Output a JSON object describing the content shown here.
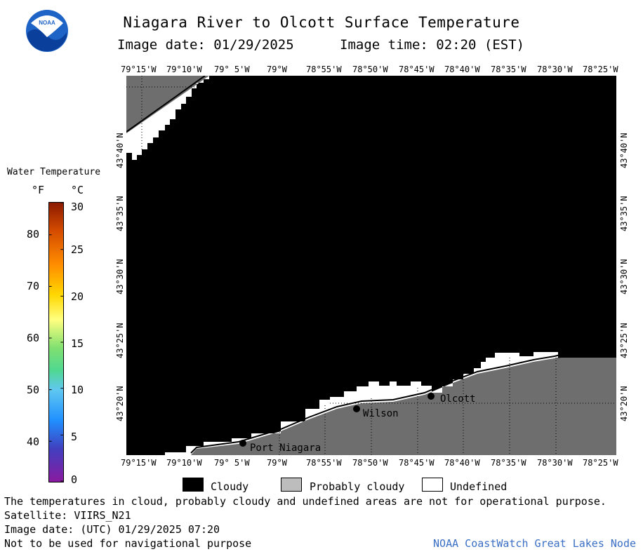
{
  "title": "Niagara River to Olcott Surface Temperature",
  "image_date": "Image date: 01/29/2025",
  "image_time": "Image time: 02:20 (EST)",
  "logo_text": "NOAA",
  "lon_labels": [
    "79°15'W",
    "79°10'W",
    "79° 5'W",
    "79°W",
    "78°55'W",
    "78°50'W",
    "78°45'W",
    "78°40'W",
    "78°35'W",
    "78°30'W",
    "78°25'W"
  ],
  "lat_labels": [
    "43°40'N",
    "43°35'N",
    "43°30'N",
    "43°25'N",
    "43°20'N"
  ],
  "legend": {
    "title": "Water Temperature",
    "unit_f": "°F",
    "unit_c": "°C",
    "f_ticks": [
      "80",
      "70",
      "60",
      "50",
      "40"
    ],
    "c_ticks": [
      "30",
      "25",
      "20",
      "15",
      "10",
      "5",
      "0"
    ]
  },
  "places": [
    {
      "name": "Port Niagara"
    },
    {
      "name": "Wilson"
    },
    {
      "name": "Olcott"
    }
  ],
  "key": {
    "cloudy": "Cloudy",
    "probably_cloudy": "Probably cloudy",
    "undefined": "Undefined",
    "cloudy_color": "#000000",
    "probably_cloudy_color": "#6e6e6e",
    "undefined_color": "#ffffff"
  },
  "footer": {
    "disclaimer": "The temperatures in cloud, probably cloudy and undefined areas are not for operational purpose.",
    "satellite": "Satellite: VIIRS_N21",
    "utc_date": "Image date: (UTC) 01/29/2025  07:20",
    "nav_warning": "Not to be used for navigational purpose",
    "credit": "NOAA CoastWatch Great Lakes Node"
  }
}
